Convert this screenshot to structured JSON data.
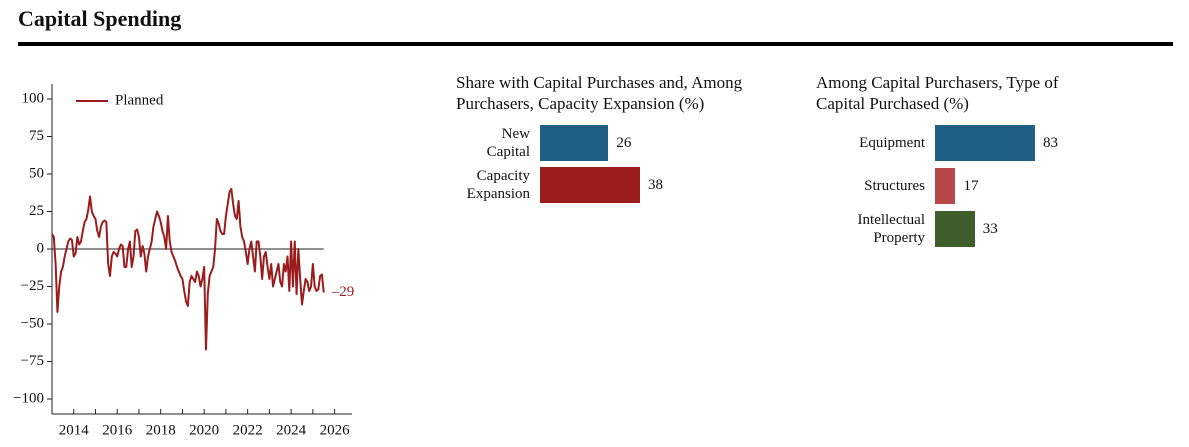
{
  "title": "Capital Spending",
  "chart_data": [
    {
      "type": "line",
      "x": [
        2013,
        2013.083,
        2013.167,
        2013.25,
        2013.333,
        2013.417,
        2013.5,
        2013.583,
        2013.667,
        2013.75,
        2013.833,
        2013.917,
        2014,
        2014.083,
        2014.167,
        2014.25,
        2014.333,
        2014.417,
        2014.5,
        2014.583,
        2014.667,
        2014.75,
        2014.833,
        2014.917,
        2015,
        2015.083,
        2015.167,
        2015.25,
        2015.333,
        2015.417,
        2015.5,
        2015.583,
        2015.667,
        2015.75,
        2015.833,
        2015.917,
        2016,
        2016.083,
        2016.167,
        2016.25,
        2016.333,
        2016.417,
        2016.5,
        2016.583,
        2016.667,
        2016.75,
        2016.833,
        2016.917,
        2017,
        2017.083,
        2017.167,
        2017.25,
        2017.333,
        2017.417,
        2017.5,
        2017.583,
        2017.667,
        2017.75,
        2017.833,
        2017.917,
        2018,
        2018.083,
        2018.167,
        2018.25,
        2018.333,
        2018.417,
        2018.5,
        2018.583,
        2018.667,
        2018.75,
        2018.833,
        2018.917,
        2019,
        2019.083,
        2019.167,
        2019.25,
        2019.333,
        2019.417,
        2019.5,
        2019.583,
        2019.667,
        2019.75,
        2019.833,
        2019.917,
        2020,
        2020.083,
        2020.167,
        2020.25,
        2020.333,
        2020.417,
        2020.5,
        2020.583,
        2020.667,
        2020.75,
        2020.833,
        2020.917,
        2021,
        2021.083,
        2021.167,
        2021.25,
        2021.333,
        2021.417,
        2021.5,
        2021.583,
        2021.667,
        2021.75,
        2021.833,
        2021.917,
        2022,
        2022.083,
        2022.167,
        2022.25,
        2022.333,
        2022.417,
        2022.5,
        2022.583,
        2022.667,
        2022.75,
        2022.833,
        2022.917,
        2023,
        2023.083,
        2023.167,
        2023.25,
        2023.333,
        2023.417,
        2023.5,
        2023.583,
        2023.667,
        2023.75,
        2023.833,
        2023.917,
        2024,
        2024.083,
        2024.167,
        2024.25,
        2024.333,
        2024.417,
        2024.5,
        2024.583,
        2024.667,
        2024.75,
        2024.833,
        2024.917,
        2025,
        2025.083,
        2025.167,
        2025.25,
        2025.333,
        2025.417,
        2025.5
      ],
      "series": [
        {
          "name": "Planned",
          "color": "#9b1c1c",
          "values": [
            10,
            8,
            -10,
            -42,
            -25,
            -15,
            -12,
            -5,
            0,
            5,
            7,
            6,
            -5,
            -3,
            8,
            3,
            5,
            12,
            18,
            20,
            26,
            35,
            25,
            22,
            20,
            12,
            8,
            15,
            18,
            19,
            18,
            -10,
            -18,
            -5,
            -2,
            -3,
            -5,
            0,
            3,
            2,
            -12,
            -12,
            0,
            5,
            -12,
            -5,
            12,
            13,
            8,
            -5,
            2,
            -3,
            -15,
            -5,
            0,
            5,
            15,
            20,
            25,
            22,
            18,
            12,
            8,
            0,
            22,
            5,
            -2,
            -5,
            -8,
            -12,
            -15,
            -18,
            -20,
            -28,
            -35,
            -38,
            -22,
            -18,
            -20,
            -22,
            -15,
            -18,
            -25,
            -20,
            -12,
            -67,
            -30,
            -18,
            -15,
            -12,
            0,
            20,
            17,
            12,
            10,
            10,
            22,
            30,
            38,
            40,
            30,
            22,
            20,
            32,
            15,
            8,
            5,
            -2,
            -10,
            0,
            5,
            -5,
            -15,
            5,
            5,
            -5,
            -20,
            -5,
            -2,
            -12,
            -20,
            -10,
            -25,
            -20,
            -15,
            -10,
            -22,
            -25,
            -10,
            -15,
            -5,
            -28,
            5,
            -25,
            5,
            -30,
            0,
            -20,
            -37,
            -28,
            -20,
            -22,
            -28,
            -25,
            -10,
            -25,
            -28,
            -27,
            -18,
            -17,
            -29
          ]
        }
      ],
      "end_label": "–29",
      "zero_line": 0,
      "xlim": [
        2013,
        2026.8
      ],
      "xticks": [
        2014,
        2016,
        2018,
        2020,
        2022,
        2024,
        2026
      ],
      "xticks_minor": [
        2015,
        2017,
        2019,
        2021,
        2023,
        2025
      ],
      "ylim": [
        -110,
        110
      ],
      "yticks": [
        {
          "value": -100,
          "label": "−100"
        },
        {
          "value": -75,
          "label": "−75"
        },
        {
          "value": -50,
          "label": "−50"
        },
        {
          "value": -25,
          "label": "−25"
        },
        0,
        25,
        50,
        75,
        100
      ],
      "legend": "upper left"
    },
    {
      "type": "hbar",
      "title": "Share with Capital Purchases and, Among Purchasers, Capacity Expansion (%)",
      "categories": [
        "New Capital",
        "Capacity Expansion"
      ],
      "values": [
        26,
        38
      ],
      "colors": [
        "#1f5f85",
        "#9b1c1c"
      ]
    },
    {
      "type": "hbar",
      "title": "Among Capital Purchasers, Type of Capital Purchased (%)",
      "categories": [
        "Equipment",
        "Structures",
        "Intellectual Property"
      ],
      "values": [
        83,
        17,
        33
      ],
      "colors": [
        "#1f5f85",
        "#b5474b",
        "#3f5e2b"
      ]
    }
  ]
}
